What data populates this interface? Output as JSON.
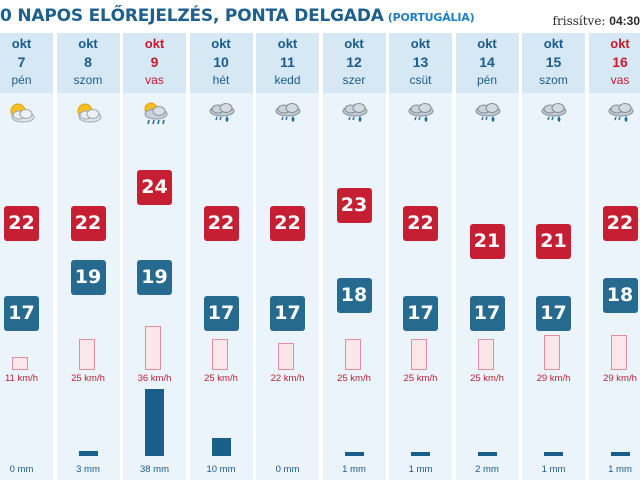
{
  "header": {
    "title": "0 NAPOS ELŐREJELZÉS, PONTA DELGADA",
    "country": "(PORTUGÁLIA)",
    "updated_label": "frissítve:",
    "updated_time": "04:30"
  },
  "colors": {
    "max_temp": "#c61f33",
    "min_temp": "#266a8f",
    "rain": "#195f8a",
    "weekend_text": "#c91a2c",
    "weekday_text": "#1a5c8b"
  },
  "days": [
    {
      "month": "okt",
      "day": "7",
      "weekday": "pén",
      "weekend": false,
      "icon": "sun-cloud-icon",
      "max": "22",
      "min": "17",
      "wind": "11 km/h",
      "wind_kmh": 11,
      "rain": "0 mm",
      "rain_mm": 0
    },
    {
      "month": "okt",
      "day": "8",
      "weekday": "szom",
      "weekend": false,
      "icon": "sun-cloud-icon",
      "max": "22",
      "min": "19",
      "wind": "25 km/h",
      "wind_kmh": 25,
      "rain": "3 mm",
      "rain_mm": 3
    },
    {
      "month": "okt",
      "day": "9",
      "weekday": "vas",
      "weekend": true,
      "icon": "sun-cloud-rain-icon",
      "max": "24",
      "min": "19",
      "wind": "36 km/h",
      "wind_kmh": 36,
      "rain": "38 mm",
      "rain_mm": 38
    },
    {
      "month": "okt",
      "day": "10",
      "weekday": "hét",
      "weekend": false,
      "icon": "cloud-rain-icon",
      "max": "22",
      "min": "17",
      "wind": "25 km/h",
      "wind_kmh": 25,
      "rain": "10 mm",
      "rain_mm": 10
    },
    {
      "month": "okt",
      "day": "11",
      "weekday": "kedd",
      "weekend": false,
      "icon": "cloud-rain-icon",
      "max": "22",
      "min": "17",
      "wind": "22 km/h",
      "wind_kmh": 22,
      "rain": "0 mm",
      "rain_mm": 0
    },
    {
      "month": "okt",
      "day": "12",
      "weekday": "szer",
      "weekend": false,
      "icon": "cloud-rain-icon",
      "max": "23",
      "min": "18",
      "wind": "25 km/h",
      "wind_kmh": 25,
      "rain": "1 mm",
      "rain_mm": 1
    },
    {
      "month": "okt",
      "day": "13",
      "weekday": "csüt",
      "weekend": false,
      "icon": "cloud-rain-icon",
      "max": "22",
      "min": "17",
      "wind": "25 km/h",
      "wind_kmh": 25,
      "rain": "1 mm",
      "rain_mm": 1
    },
    {
      "month": "okt",
      "day": "14",
      "weekday": "pén",
      "weekend": false,
      "icon": "cloud-rain-icon",
      "max": "21",
      "min": "17",
      "wind": "25 km/h",
      "wind_kmh": 25,
      "rain": "2 mm",
      "rain_mm": 2
    },
    {
      "month": "okt",
      "day": "15",
      "weekday": "szom",
      "weekend": false,
      "icon": "cloud-rain-icon",
      "max": "21",
      "min": "17",
      "wind": "29 km/h",
      "wind_kmh": 29,
      "rain": "1 mm",
      "rain_mm": 1
    },
    {
      "month": "okt",
      "day": "16",
      "weekday": "vas",
      "weekend": true,
      "icon": "cloud-rain-icon",
      "max": "22",
      "min": "18",
      "wind": "29 km/h",
      "wind_kmh": 29,
      "rain": "1 mm",
      "rain_mm": 1
    }
  ]
}
